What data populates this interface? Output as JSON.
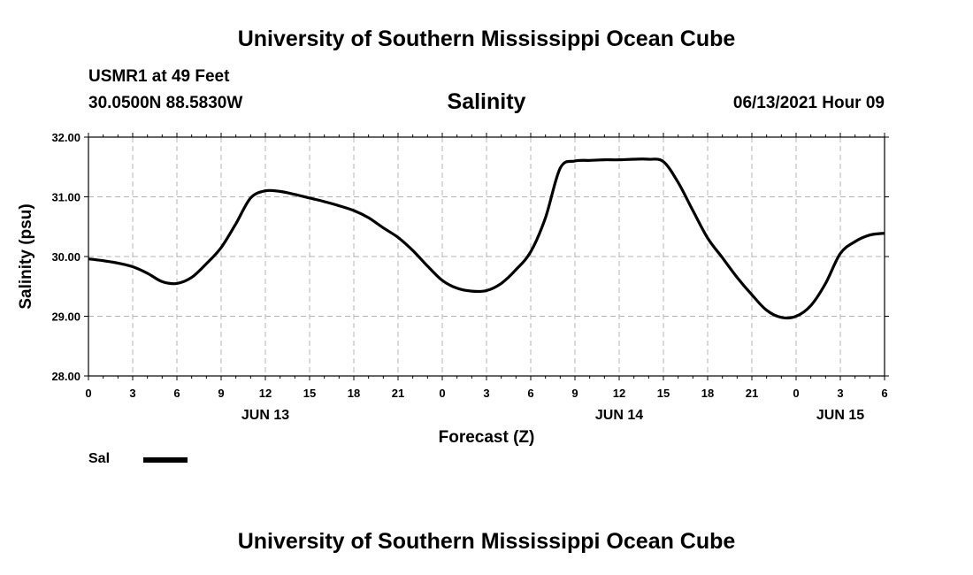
{
  "header": {
    "title_top": "University of Southern Mississippi Ocean Cube",
    "title_bottom": "University of Southern Mississippi Ocean Cube",
    "station": "USMR1 at 49 Feet",
    "coords": "30.0500N  88.5830W",
    "timestamp": "06/13/2021 Hour 09"
  },
  "colors": {
    "line": "#000000",
    "grid": "#b4b4b4",
    "axis": "#000000"
  },
  "chart_data": {
    "type": "line",
    "title": "Salinity",
    "xlabel": "Forecast (Z)",
    "ylabel": "Salinity (psu)",
    "ylim": [
      28.0,
      32.0
    ],
    "xlim": [
      0,
      54
    ],
    "y_ticks": [
      "28.00",
      "29.00",
      "30.00",
      "31.00",
      "32.00"
    ],
    "x_tick_labels": [
      "0",
      "3",
      "6",
      "9",
      "12",
      "15",
      "18",
      "21",
      "0",
      "3",
      "6",
      "9",
      "12",
      "15",
      "18",
      "21",
      "0",
      "3",
      "6"
    ],
    "date_labels": [
      {
        "hour": 12,
        "label": "JUN 13"
      },
      {
        "hour": 36,
        "label": "JUN 14"
      },
      {
        "hour": 51,
        "label": "JUN 15"
      }
    ],
    "grid": true,
    "legend": {
      "position": "bottom-left",
      "entries": [
        "Sal"
      ]
    },
    "series": [
      {
        "name": "Sal",
        "x": [
          0,
          1,
          2,
          3,
          4,
          5,
          6,
          7,
          8,
          9,
          10,
          11,
          12,
          13,
          14,
          15,
          16,
          17,
          18,
          19,
          20,
          21,
          22,
          23,
          24,
          25,
          26,
          27,
          28,
          29,
          30,
          31,
          32,
          33,
          34,
          35,
          36,
          37,
          38,
          39,
          40,
          41,
          42,
          43,
          44,
          45,
          46,
          47,
          48,
          49,
          50,
          51,
          52,
          53,
          54
        ],
        "values": [
          29.96,
          29.93,
          29.89,
          29.83,
          29.72,
          29.58,
          29.55,
          29.65,
          29.88,
          30.15,
          30.55,
          30.98,
          31.1,
          31.09,
          31.04,
          30.98,
          30.92,
          30.85,
          30.77,
          30.65,
          30.48,
          30.32,
          30.1,
          29.84,
          29.6,
          29.47,
          29.42,
          29.43,
          29.55,
          29.78,
          30.08,
          30.65,
          31.48,
          31.6,
          31.61,
          31.62,
          31.62,
          31.63,
          31.63,
          31.59,
          31.24,
          30.77,
          30.31,
          29.98,
          29.65,
          29.36,
          29.1,
          28.98,
          29.0,
          29.18,
          29.55,
          30.05,
          30.25,
          30.36,
          30.39
        ]
      }
    ]
  }
}
